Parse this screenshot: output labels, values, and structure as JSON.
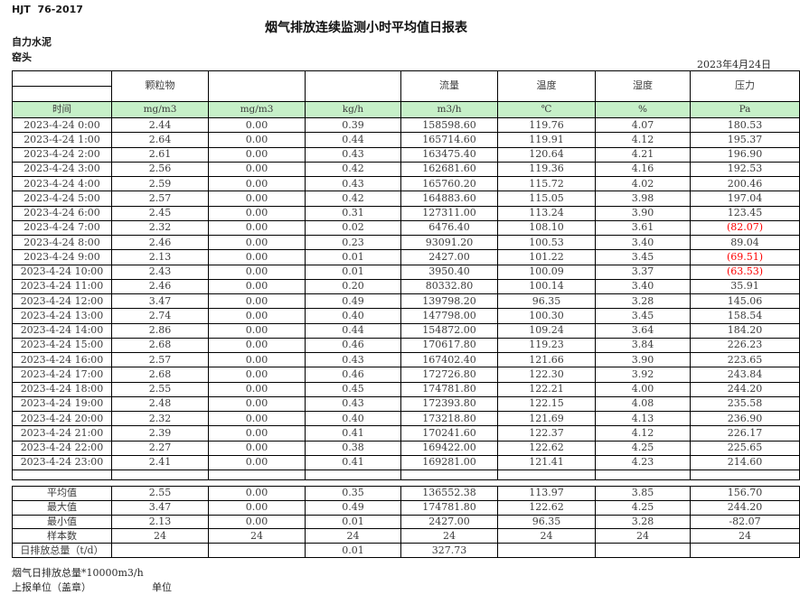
{
  "page": {
    "doc_code": "HJT  76-2017",
    "title": "烟气排放连续监测小时平均值日报表",
    "company": "自力水泥",
    "station": "窑头",
    "date": "2023年4月24日"
  },
  "table": {
    "group_headers": [
      "",
      "颗粒物",
      "",
      "",
      "流量",
      "温度",
      "湿度",
      "压力"
    ],
    "unit_row": [
      "时间",
      "mg/m3",
      "mg/m3",
      "kg/h",
      "m3/h",
      "℃",
      "%",
      "Pa"
    ],
    "rows": [
      [
        "2023-4-24 0:00",
        "2.44",
        "0.00",
        "0.39",
        "158598.60",
        "119.76",
        "4.07",
        "180.53"
      ],
      [
        "2023-4-24 1:00",
        "2.64",
        "0.00",
        "0.44",
        "165714.60",
        "119.91",
        "4.12",
        "195.37"
      ],
      [
        "2023-4-24 2:00",
        "2.61",
        "0.00",
        "0.43",
        "163475.40",
        "120.64",
        "4.21",
        "196.90"
      ],
      [
        "2023-4-24 3:00",
        "2.56",
        "0.00",
        "0.42",
        "162681.60",
        "119.36",
        "4.16",
        "192.53"
      ],
      [
        "2023-4-24 4:00",
        "2.59",
        "0.00",
        "0.43",
        "165760.20",
        "115.72",
        "4.02",
        "200.46"
      ],
      [
        "2023-4-24 5:00",
        "2.57",
        "0.00",
        "0.42",
        "164883.60",
        "115.05",
        "3.98",
        "197.04"
      ],
      [
        "2023-4-24 6:00",
        "2.45",
        "0.00",
        "0.31",
        "127311.00",
        "113.24",
        "3.90",
        "123.45"
      ],
      [
        "2023-4-24 7:00",
        "2.32",
        "0.00",
        "0.02",
        "6476.40",
        "108.10",
        "3.61",
        "(82.07)"
      ],
      [
        "2023-4-24 8:00",
        "2.46",
        "0.00",
        "0.23",
        "93091.20",
        "100.53",
        "3.40",
        "89.04"
      ],
      [
        "2023-4-24 9:00",
        "2.13",
        "0.00",
        "0.01",
        "2427.00",
        "101.22",
        "3.45",
        "(69.51)"
      ],
      [
        "2023-4-24 10:00",
        "2.43",
        "0.00",
        "0.01",
        "3950.40",
        "100.09",
        "3.37",
        "(63.53)"
      ],
      [
        "2023-4-24 11:00",
        "2.46",
        "0.00",
        "0.20",
        "80332.80",
        "100.14",
        "3.40",
        "35.91"
      ],
      [
        "2023-4-24 12:00",
        "3.47",
        "0.00",
        "0.49",
        "139798.20",
        "96.35",
        "3.28",
        "145.06"
      ],
      [
        "2023-4-24 13:00",
        "2.74",
        "0.00",
        "0.40",
        "147798.00",
        "100.30",
        "3.45",
        "158.54"
      ],
      [
        "2023-4-24 14:00",
        "2.86",
        "0.00",
        "0.44",
        "154872.00",
        "109.24",
        "3.64",
        "184.20"
      ],
      [
        "2023-4-24 15:00",
        "2.68",
        "0.00",
        "0.46",
        "170617.80",
        "119.23",
        "3.84",
        "226.23"
      ],
      [
        "2023-4-24 16:00",
        "2.57",
        "0.00",
        "0.43",
        "167402.40",
        "121.66",
        "3.90",
        "223.65"
      ],
      [
        "2023-4-24 17:00",
        "2.68",
        "0.00",
        "0.46",
        "172726.80",
        "122.30",
        "3.92",
        "243.84"
      ],
      [
        "2023-4-24 18:00",
        "2.55",
        "0.00",
        "0.45",
        "174781.80",
        "122.21",
        "4.00",
        "244.20"
      ],
      [
        "2023-4-24 19:00",
        "2.48",
        "0.00",
        "0.43",
        "172393.80",
        "122.15",
        "4.08",
        "235.58"
      ],
      [
        "2023-4-24 20:00",
        "2.32",
        "0.00",
        "0.40",
        "173218.80",
        "121.69",
        "4.13",
        "236.90"
      ],
      [
        "2023-4-24 21:00",
        "2.39",
        "0.00",
        "0.41",
        "170241.60",
        "122.37",
        "4.12",
        "226.17"
      ],
      [
        "2023-4-24 22:00",
        "2.27",
        "0.00",
        "0.38",
        "169422.00",
        "122.62",
        "4.25",
        "225.65"
      ],
      [
        "2023-4-24 23:00",
        "2.41",
        "0.00",
        "0.41",
        "169281.00",
        "121.41",
        "4.23",
        "214.60"
      ]
    ],
    "summary": [
      {
        "label": "平均值",
        "values": [
          "2.55",
          "0.00",
          "0.35",
          "136552.38",
          "113.97",
          "3.85",
          "156.70"
        ]
      },
      {
        "label": "最大值",
        "values": [
          "3.47",
          "0.00",
          "0.49",
          "174781.80",
          "122.62",
          "4.25",
          "244.20"
        ]
      },
      {
        "label": "最小值",
        "values": [
          "2.13",
          "0.00",
          "0.01",
          "2427.00",
          "96.35",
          "3.28",
          "-82.07"
        ]
      },
      {
        "label": "样本数",
        "values": [
          "24",
          "24",
          "24",
          "24",
          "24",
          "24",
          "24"
        ]
      },
      {
        "label": "日排放总量（t/d）",
        "values": [
          "",
          "",
          "0.01",
          "327.73",
          "",
          "",
          ""
        ]
      }
    ]
  },
  "footer": {
    "note": "烟气日排放总量*10000m3/h",
    "report_unit_label": "上报单位（盖章）",
    "unit_label": "单位"
  },
  "colors": {
    "unit_row_bg": "#c6f0c8",
    "negative_value": "#fe0000",
    "border": "#000000"
  }
}
